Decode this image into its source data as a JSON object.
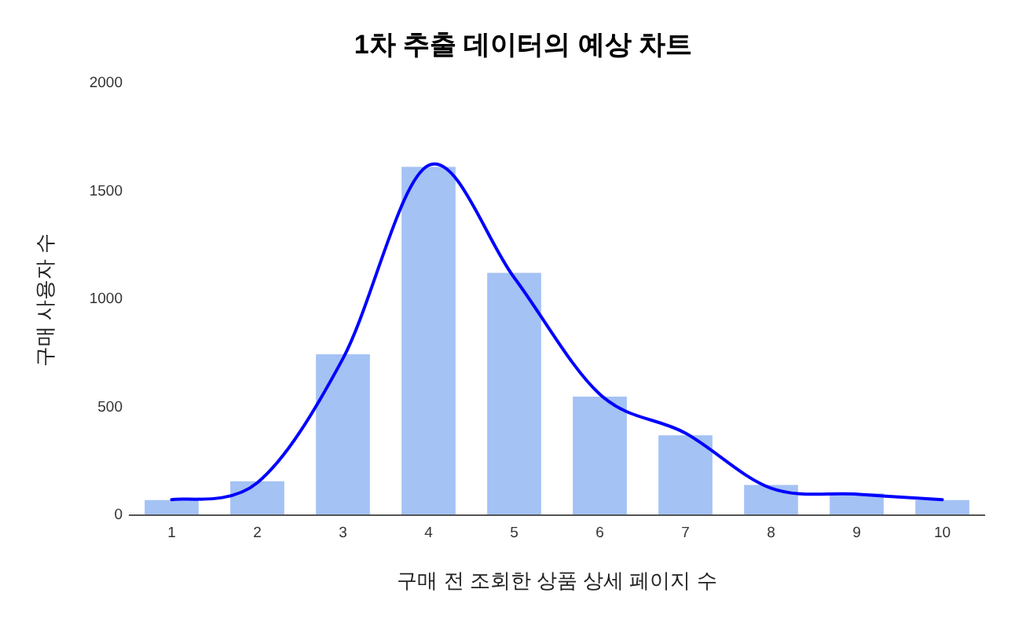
{
  "chart_data": {
    "type": "bar",
    "title": "1차  추출 데이터의 예상 차트",
    "xlabel": "구매 전 조회한 상품 상세 페이지 수",
    "ylabel": "구매 사용자 수",
    "categories": [
      "1",
      "2",
      "3",
      "4",
      "5",
      "6",
      "7",
      "8",
      "9",
      "10"
    ],
    "series": [
      {
        "color": "#a4c2f4",
        "values": [
          70,
          157,
          745,
          1613,
          1122,
          549,
          370,
          140,
          101,
          70
        ]
      },
      {
        "type": "line",
        "color": "#0000ff",
        "values": [
          72,
          150,
          725,
          1620,
          1100,
          560,
          380,
          125,
          97,
          72
        ]
      }
    ],
    "ylim": [
      0,
      2000
    ],
    "yticks": [
      0,
      500,
      1000,
      1500,
      2000
    ],
    "grid": false
  }
}
